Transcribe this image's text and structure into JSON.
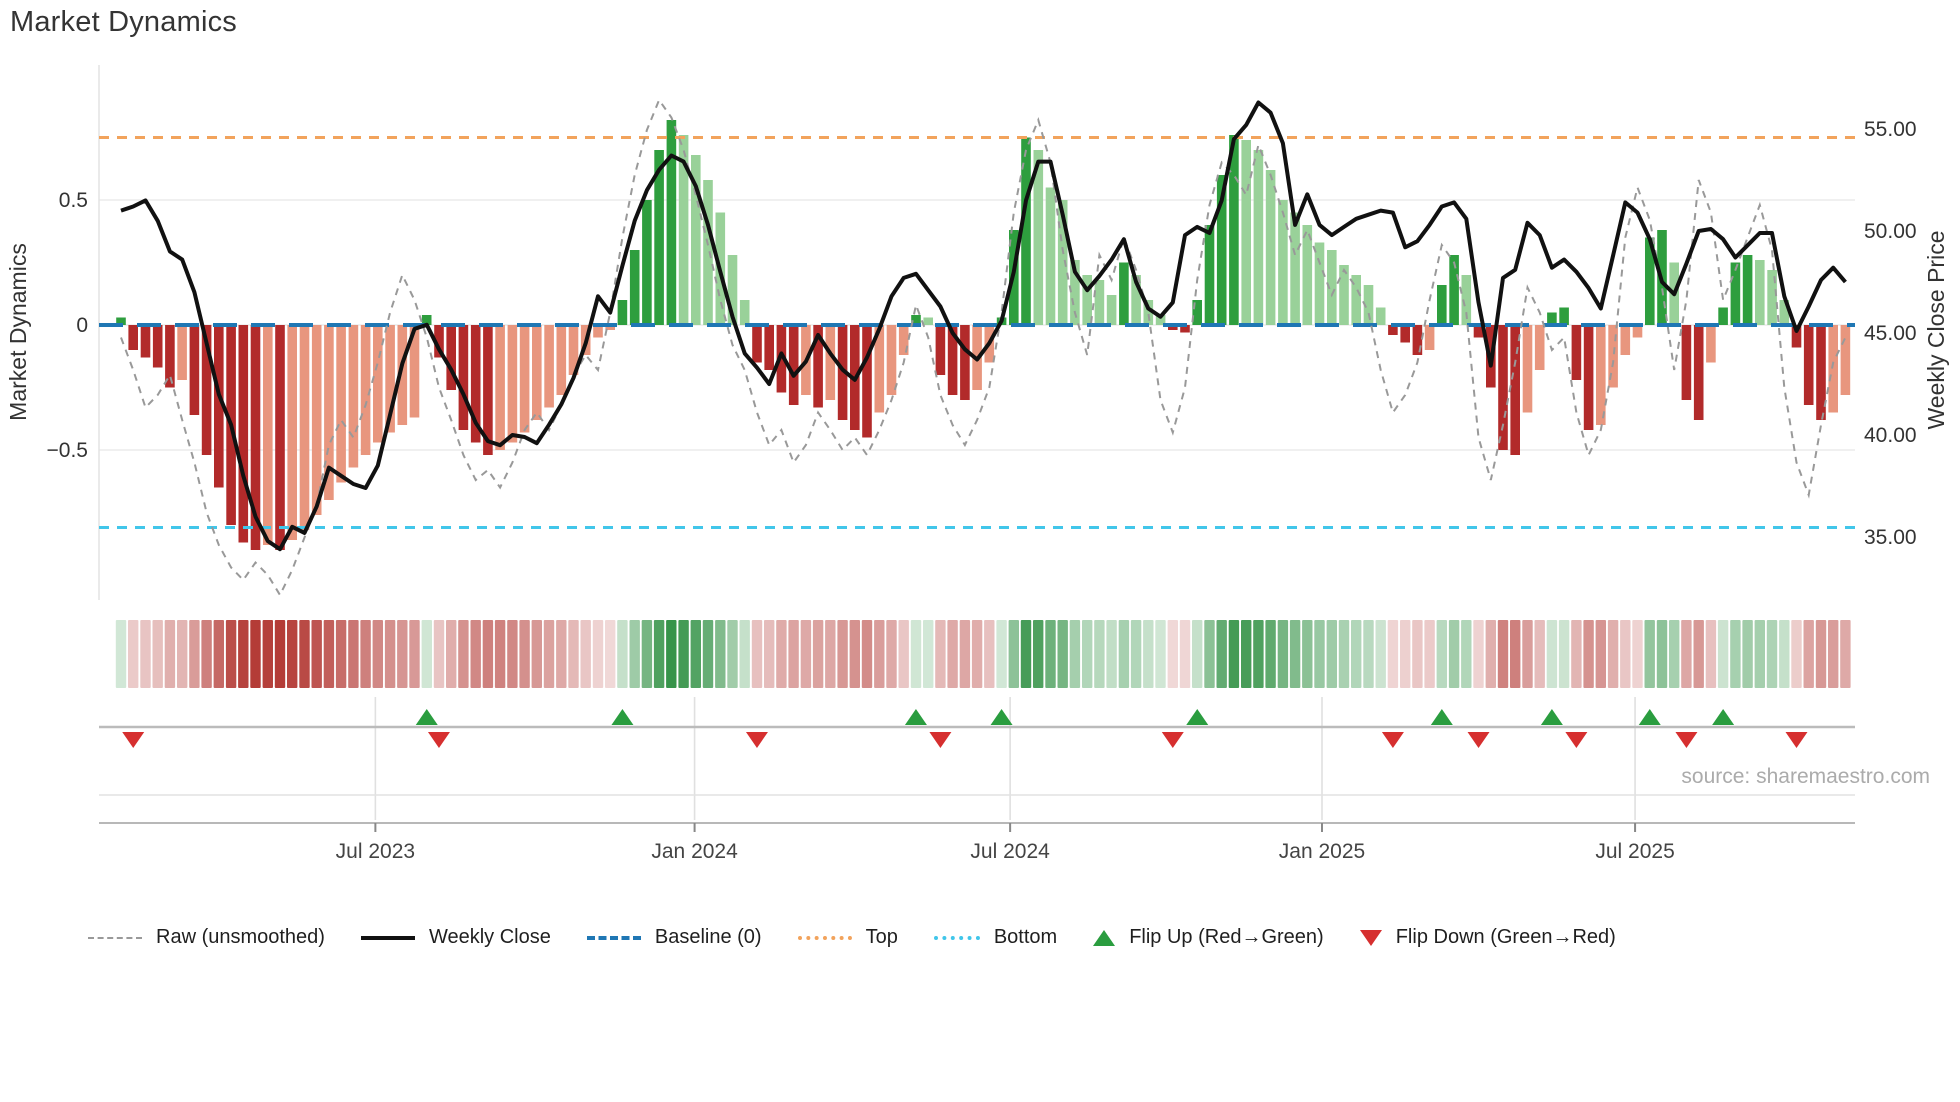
{
  "title": "Market Dynamics",
  "source": "source: sharemaestro.com",
  "axes": {
    "left": {
      "label": "Market Dynamics",
      "ticks": [
        {
          "label": "0.5",
          "value": 0.5
        },
        {
          "label": "0",
          "value": 0
        },
        {
          "label": "−0.5",
          "value": -0.5
        }
      ]
    },
    "right": {
      "label": "Weekly Close Price",
      "ticks": [
        {
          "label": "55.00",
          "value": 55
        },
        {
          "label": "50.00",
          "value": 50
        },
        {
          "label": "45.00",
          "value": 45
        },
        {
          "label": "40.00",
          "value": 40
        },
        {
          "label": "35.00",
          "value": 35
        }
      ]
    },
    "x": {
      "ticks": [
        {
          "label": "Jul 2023",
          "week": 20.8
        },
        {
          "label": "Jan 2024",
          "week": 46.9
        },
        {
          "label": "Jul 2024",
          "week": 72.7
        },
        {
          "label": "Jan 2025",
          "week": 98.2
        },
        {
          "label": "Jul 2025",
          "week": 123.8
        }
      ]
    }
  },
  "legend": {
    "items": [
      {
        "label": "Raw (unsmoothed)"
      },
      {
        "label": "Weekly Close"
      },
      {
        "label": "Baseline (0)"
      },
      {
        "label": "Top"
      },
      {
        "label": "Bottom"
      },
      {
        "label": "Flip Up (Red→Green)"
      },
      {
        "label": "Flip Down (Green→Red)"
      }
    ]
  },
  "colors": {
    "bar_dark_green": "#2e9e3e",
    "bar_light_green": "#99d199",
    "bar_dark_red": "#b22a2a",
    "bar_light_red": "#e8967e",
    "weekly_close_line": "#111111",
    "raw_line": "#999999",
    "baseline_blue": "#1f77b4",
    "top_orange": "#f2a35c",
    "bottom_cyan": "#41c6ea",
    "flip_up_green": "#2a9d3f",
    "flip_down_red": "#d62f2f",
    "gridline": "#ececec",
    "tick_text": "#333333",
    "date_text": "#444444",
    "source_text": "#ababab"
  },
  "chart_data": {
    "type": "bar",
    "x_unit": "week_index (weekly data, ~Feb 2023 → Oct 2025)",
    "n_weeks": 142,
    "title": "Market Dynamics",
    "left_ylabel": "Market Dynamics",
    "right_ylabel": "Weekly Close Price",
    "left_ylim": [
      -1.1,
      1.05
    ],
    "right_ylim": [
      33.3,
      57.8
    ],
    "reference_lines": {
      "baseline": 0,
      "top": 0.75,
      "bottom": -0.81
    },
    "flip_up_weeks": [
      25,
      41,
      65,
      72,
      88,
      108,
      117,
      125,
      131
    ],
    "flip_down_weeks": [
      1,
      26,
      52,
      67,
      86,
      104,
      111,
      119,
      128,
      137
    ],
    "heatmap_note": "heatmap strip repeats bar values as color intensity (green positive, red negative)",
    "series": [
      {
        "name": "Market Dynamics (smoothed bars)",
        "type": "bar",
        "axis": "left",
        "values": [
          0.03,
          -0.1,
          -0.13,
          -0.17,
          -0.25,
          -0.22,
          -0.36,
          -0.52,
          -0.65,
          -0.8,
          -0.87,
          -0.9,
          -0.88,
          -0.9,
          -0.86,
          -0.82,
          -0.76,
          -0.7,
          -0.63,
          -0.57,
          -0.52,
          -0.47,
          -0.43,
          -0.4,
          -0.37,
          0.04,
          -0.13,
          -0.26,
          -0.42,
          -0.47,
          -0.52,
          -0.5,
          -0.47,
          -0.43,
          -0.38,
          -0.33,
          -0.28,
          -0.2,
          -0.12,
          -0.05,
          -0.02,
          0.1,
          0.3,
          0.5,
          0.7,
          0.82,
          0.76,
          0.68,
          0.58,
          0.45,
          0.28,
          0.1,
          -0.15,
          -0.18,
          -0.27,
          -0.32,
          -0.28,
          -0.33,
          -0.3,
          -0.38,
          -0.42,
          -0.45,
          -0.35,
          -0.28,
          -0.12,
          0.04,
          0.03,
          -0.2,
          -0.28,
          -0.3,
          -0.26,
          -0.15,
          0.03,
          0.38,
          0.75,
          0.7,
          0.55,
          0.5,
          0.26,
          0.2,
          0.18,
          0.12,
          0.25,
          0.2,
          0.1,
          0.04,
          -0.02,
          -0.03,
          0.1,
          0.4,
          0.6,
          0.76,
          0.74,
          0.7,
          0.62,
          0.5,
          0.45,
          0.4,
          0.33,
          0.3,
          0.24,
          0.2,
          0.16,
          0.07,
          -0.04,
          -0.07,
          -0.12,
          -0.1,
          0.16,
          0.28,
          0.2,
          -0.05,
          -0.25,
          -0.5,
          -0.52,
          -0.35,
          -0.18,
          0.05,
          0.07,
          -0.22,
          -0.42,
          -0.4,
          -0.25,
          -0.12,
          -0.05,
          0.35,
          0.38,
          0.25,
          -0.3,
          -0.38,
          -0.15,
          0.07,
          0.25,
          0.28,
          0.26,
          0.22,
          0.1,
          -0.09,
          -0.32,
          -0.38,
          -0.35,
          -0.28
        ]
      },
      {
        "name": "Raw (unsmoothed)",
        "type": "line",
        "style": "dashed",
        "axis": "left",
        "values": [
          -0.05,
          -0.18,
          -0.33,
          -0.28,
          -0.2,
          -0.38,
          -0.55,
          -0.75,
          -0.88,
          -0.97,
          -1.02,
          -0.95,
          -1.0,
          -1.08,
          -0.98,
          -0.85,
          -0.72,
          -0.48,
          -0.38,
          -0.45,
          -0.32,
          -0.15,
          0.05,
          0.2,
          0.1,
          -0.05,
          -0.25,
          -0.38,
          -0.52,
          -0.62,
          -0.58,
          -0.65,
          -0.55,
          -0.42,
          -0.35,
          -0.42,
          -0.32,
          -0.2,
          -0.12,
          -0.18,
          0.05,
          0.35,
          0.6,
          0.78,
          0.9,
          0.83,
          0.7,
          0.52,
          0.32,
          0.1,
          -0.08,
          -0.18,
          -0.35,
          -0.48,
          -0.42,
          -0.55,
          -0.48,
          -0.35,
          -0.42,
          -0.5,
          -0.45,
          -0.52,
          -0.42,
          -0.3,
          -0.15,
          0.08,
          -0.05,
          -0.28,
          -0.4,
          -0.48,
          -0.38,
          -0.25,
          0.05,
          0.45,
          0.7,
          0.82,
          0.65,
          0.3,
          0.05,
          -0.12,
          0.28,
          0.18,
          0.35,
          0.22,
          0.05,
          -0.3,
          -0.43,
          -0.25,
          0.18,
          0.48,
          0.65,
          0.6,
          0.52,
          0.72,
          0.6,
          0.45,
          0.28,
          0.38,
          0.25,
          0.12,
          0.22,
          0.15,
          0.05,
          -0.18,
          -0.35,
          -0.28,
          -0.15,
          0.1,
          0.32,
          0.25,
          0.05,
          -0.45,
          -0.62,
          -0.4,
          -0.15,
          0.15,
          0.05,
          -0.1,
          -0.05,
          -0.35,
          -0.52,
          -0.42,
          -0.15,
          0.35,
          0.55,
          0.42,
          0.15,
          -0.18,
          0.1,
          0.58,
          0.45,
          0.1,
          0.22,
          0.35,
          0.48,
          0.3,
          -0.25,
          -0.55,
          -0.68,
          -0.4,
          -0.15,
          -0.05
        ]
      },
      {
        "name": "Weekly Close",
        "type": "line",
        "axis": "right",
        "values": [
          51.0,
          51.2,
          51.5,
          50.5,
          49.0,
          48.6,
          47.0,
          44.5,
          42.0,
          40.5,
          38.0,
          36.0,
          34.8,
          34.4,
          35.5,
          35.2,
          36.5,
          38.4,
          38.0,
          37.6,
          37.4,
          38.5,
          41.0,
          43.5,
          45.2,
          45.4,
          44.2,
          43.2,
          42.0,
          40.6,
          39.7,
          39.5,
          40.0,
          39.9,
          39.6,
          40.5,
          41.5,
          42.8,
          44.5,
          46.8,
          46.0,
          48.3,
          50.5,
          52.0,
          53.0,
          53.7,
          53.4,
          52.2,
          50.3,
          48.0,
          45.8,
          44.0,
          43.3,
          42.5,
          44.0,
          42.9,
          43.6,
          44.9,
          44.0,
          43.2,
          42.7,
          43.8,
          45.2,
          46.8,
          47.7,
          47.9,
          47.1,
          46.3,
          45.0,
          44.2,
          43.7,
          44.5,
          45.6,
          48.0,
          51.5,
          53.4,
          53.4,
          50.8,
          48.0,
          47.1,
          47.8,
          48.6,
          49.6,
          47.5,
          46.2,
          45.8,
          46.5,
          49.8,
          50.2,
          49.9,
          51.5,
          54.5,
          55.2,
          56.3,
          55.8,
          54.3,
          50.3,
          51.8,
          50.3,
          49.8,
          50.2,
          50.6,
          50.8,
          51.0,
          50.9,
          49.2,
          49.5,
          50.3,
          51.2,
          51.4,
          50.6,
          46.5,
          43.4,
          47.7,
          48.1,
          50.4,
          49.8,
          48.2,
          48.6,
          48.0,
          47.2,
          46.2,
          48.8,
          51.4,
          50.9,
          49.6,
          47.5,
          46.9,
          48.4,
          50.0,
          50.1,
          49.6,
          48.7,
          49.3,
          49.9,
          49.9,
          46.8,
          45.1,
          46.3,
          47.6,
          48.2,
          47.5
        ]
      }
    ]
  }
}
